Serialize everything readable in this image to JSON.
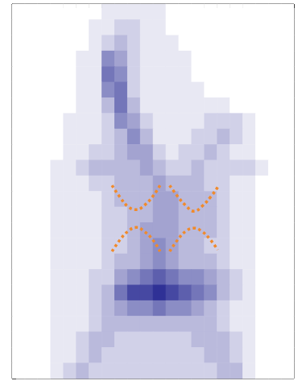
{
  "chart_data": {
    "type": "heatmap",
    "xlim": [
      0,
      44
    ],
    "xticks": [
      0,
      1,
      2,
      3,
      4,
      5,
      6,
      7,
      8,
      9,
      10,
      11,
      12,
      13,
      14,
      15,
      16,
      17,
      18,
      19,
      20,
      21,
      22,
      23,
      24,
      25,
      26,
      27,
      28,
      29,
      30,
      31,
      32,
      33,
      34,
      35,
      36,
      37,
      38,
      39,
      40,
      41,
      42,
      43,
      44
    ],
    "ylim": [
      0,
      19
    ],
    "yticks": [
      0,
      1,
      2,
      3,
      4,
      5,
      6,
      7,
      8,
      9,
      10,
      11,
      12,
      13,
      14,
      15,
      16,
      17,
      18,
      19
    ],
    "tick_labels": false,
    "grid": false,
    "heatmap": {
      "color": "#2f3196",
      "color_range": [
        0,
        9
      ],
      "cells": [
        [
          0,
          0,
          0,
          0,
          0,
          0,
          0,
          1,
          1,
          1,
          1,
          1,
          0,
          0,
          0,
          0,
          0,
          0,
          0,
          0,
          0,
          0
        ],
        [
          0,
          0,
          0,
          0,
          0,
          0,
          1,
          1,
          2,
          2,
          1,
          1,
          0,
          0,
          0,
          0,
          0,
          0,
          0,
          0,
          0,
          0
        ],
        [
          0,
          0,
          0,
          0,
          0,
          0,
          1,
          2,
          3,
          2,
          1,
          1,
          1,
          0,
          0,
          0,
          0,
          0,
          0,
          0,
          0,
          0
        ],
        [
          0,
          0,
          0,
          0,
          0,
          1,
          1,
          5,
          4,
          2,
          1,
          1,
          1,
          1,
          0,
          0,
          0,
          0,
          0,
          0,
          0,
          0
        ],
        [
          0,
          0,
          0,
          0,
          0,
          1,
          1,
          6,
          5,
          2,
          1,
          1,
          1,
          1,
          0,
          0,
          0,
          0,
          0,
          0,
          0,
          0
        ],
        [
          0,
          0,
          0,
          0,
          0,
          1,
          1,
          5,
          6,
          2,
          1,
          1,
          1,
          1,
          1,
          0,
          0,
          0,
          0,
          0,
          0,
          0
        ],
        [
          0,
          0,
          0,
          0,
          0,
          1,
          1,
          3,
          6,
          3,
          1,
          1,
          1,
          1,
          1,
          1,
          1,
          0,
          0,
          0,
          0,
          0
        ],
        [
          0,
          0,
          0,
          0,
          1,
          1,
          1,
          2,
          5,
          4,
          2,
          1,
          1,
          1,
          1,
          2,
          2,
          2,
          1,
          0,
          0,
          0
        ],
        [
          0,
          0,
          0,
          0,
          1,
          1,
          1,
          2,
          3,
          5,
          3,
          1,
          1,
          1,
          2,
          2,
          3,
          2,
          1,
          0,
          0,
          0
        ],
        [
          0,
          0,
          0,
          0,
          1,
          1,
          2,
          2,
          3,
          4,
          4,
          2,
          1,
          2,
          2,
          3,
          2,
          1,
          1,
          0,
          0,
          0
        ],
        [
          0,
          0,
          0,
          1,
          1,
          2,
          3,
          3,
          3,
          3,
          4,
          3,
          2,
          2,
          3,
          2,
          2,
          2,
          2,
          1,
          0,
          0
        ],
        [
          0,
          0,
          0,
          1,
          1,
          1,
          2,
          2,
          3,
          3,
          3,
          4,
          3,
          3,
          3,
          2,
          2,
          1,
          1,
          0,
          0,
          0
        ],
        [
          0,
          0,
          0,
          1,
          1,
          1,
          1,
          2,
          3,
          3,
          3,
          4,
          4,
          3,
          3,
          3,
          2,
          1,
          1,
          0,
          0,
          0
        ],
        [
          0,
          0,
          0,
          1,
          1,
          1,
          1,
          2,
          2,
          3,
          3,
          4,
          4,
          3,
          3,
          3,
          2,
          1,
          1,
          0,
          0,
          0
        ],
        [
          0,
          0,
          0,
          1,
          1,
          1,
          1,
          2,
          2,
          3,
          4,
          4,
          4,
          3,
          3,
          3,
          2,
          1,
          1,
          0,
          0,
          0
        ],
        [
          0,
          0,
          0,
          1,
          1,
          1,
          1,
          2,
          2,
          3,
          4,
          5,
          4,
          3,
          3,
          2,
          2,
          1,
          1,
          0,
          0,
          0
        ],
        [
          0,
          0,
          0,
          1,
          1,
          1,
          1,
          2,
          3,
          3,
          4,
          5,
          4,
          3,
          3,
          3,
          2,
          1,
          1,
          0,
          0,
          0
        ],
        [
          0,
          0,
          0,
          1,
          1,
          1,
          2,
          2,
          4,
          5,
          6,
          7,
          6,
          5,
          5,
          4,
          3,
          2,
          1,
          0,
          0,
          0
        ],
        [
          0,
          0,
          0,
          1,
          1,
          1,
          2,
          3,
          6,
          8,
          8,
          9,
          8,
          7,
          6,
          5,
          3,
          2,
          1,
          0,
          0,
          0
        ],
        [
          0,
          0,
          0,
          1,
          1,
          1,
          2,
          3,
          4,
          5,
          5,
          6,
          5,
          5,
          4,
          3,
          2,
          1,
          1,
          0,
          0,
          0
        ],
        [
          0,
          0,
          0,
          1,
          1,
          1,
          2,
          3,
          3,
          3,
          3,
          3,
          3,
          3,
          3,
          3,
          2,
          1,
          1,
          0,
          0,
          0
        ],
        [
          0,
          0,
          0,
          1,
          1,
          2,
          3,
          3,
          2,
          2,
          2,
          2,
          2,
          2,
          3,
          3,
          3,
          2,
          1,
          0,
          0,
          0
        ],
        [
          0,
          0,
          0,
          1,
          1,
          2,
          3,
          2,
          2,
          2,
          2,
          2,
          2,
          2,
          2,
          3,
          3,
          2,
          1,
          0,
          0,
          0
        ],
        [
          0,
          0,
          0,
          1,
          2,
          3,
          2,
          2,
          2,
          2,
          2,
          2,
          2,
          2,
          2,
          2,
          3,
          3,
          1,
          0,
          0,
          0
        ]
      ]
    },
    "series": [
      {
        "type": "line",
        "color": "#f08a2c",
        "line_style": "dotted",
        "x": [
          15.6,
          16.9,
          18.1,
          19.4,
          20.6,
          21.9,
          23.1
        ],
        "values": [
          9.8,
          9.18,
          8.73,
          8.57,
          8.78,
          9.22,
          9.8
        ]
      },
      {
        "type": "line",
        "color": "#f08a2c",
        "line_style": "dotted",
        "x": [
          24.6,
          25.9,
          27.1,
          28.4,
          29.6,
          30.9,
          32.1
        ],
        "values": [
          9.8,
          9.22,
          8.78,
          8.49,
          8.73,
          9.18,
          9.71
        ]
      },
      {
        "type": "line",
        "color": "#f08a2c",
        "line_style": "dotted",
        "x": [
          15.6,
          16.9,
          18.1,
          19.4,
          20.6,
          21.9,
          23.1
        ],
        "values": [
          6.45,
          7.06,
          7.47,
          7.67,
          7.47,
          7.06,
          6.45
        ]
      },
      {
        "type": "line",
        "color": "#f08a2c",
        "line_style": "dotted",
        "x": [
          24.6,
          25.9,
          27.1,
          28.4,
          29.6,
          30.9,
          32.1
        ],
        "values": [
          6.45,
          7.06,
          7.47,
          7.63,
          7.47,
          7.06,
          6.53
        ]
      }
    ]
  }
}
